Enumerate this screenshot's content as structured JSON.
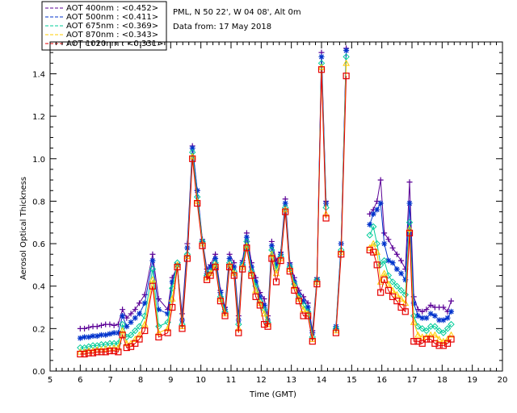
{
  "chart_data": {
    "type": "line",
    "title": "",
    "station": "PML, N 50 22', W 04 08', Alt 0m",
    "data_from": "Data from: 17 May 2018",
    "xlabel": "Time (GMT)",
    "ylabel": "Aerosol Optical Thickness",
    "xlim": [
      5,
      20
    ],
    "ylim": [
      0.0,
      1.55
    ],
    "xticks": [
      5,
      6,
      7,
      8,
      9,
      10,
      11,
      12,
      13,
      14,
      15,
      16,
      17,
      18,
      19,
      20
    ],
    "yticks": [
      0.0,
      0.2,
      0.4,
      0.6,
      0.8,
      1.0,
      1.2,
      1.4
    ],
    "ytick_labels": [
      "0.0",
      "0.2",
      "0.4",
      "0.6",
      "0.8",
      "1.0",
      "1.2",
      "1.4"
    ],
    "legend_position": "top-left, outside plot",
    "x": [
      6.0,
      6.14,
      6.28,
      6.42,
      6.56,
      6.7,
      6.84,
      6.98,
      7.12,
      7.26,
      7.4,
      7.54,
      7.68,
      7.82,
      7.96,
      8.14,
      8.4,
      8.6,
      8.9,
      9.05,
      9.22,
      9.38,
      9.55,
      9.72,
      9.88,
      10.05,
      10.2,
      10.32,
      10.48,
      10.65,
      10.8,
      10.95,
      11.1,
      11.25,
      11.38,
      11.52,
      11.68,
      11.82,
      11.96,
      12.1,
      12.22,
      12.35,
      12.5,
      12.65,
      12.8,
      12.95,
      13.1,
      13.25,
      13.4,
      13.55,
      13.7,
      13.85,
      14.0,
      14.15,
      14.3,
      14.48,
      14.65,
      14.82,
      14.98,
      15.6,
      15.72,
      15.84,
      15.96,
      16.08,
      16.22,
      16.36,
      16.5,
      16.64,
      16.78,
      16.92,
      17.06,
      17.2,
      17.34,
      17.48,
      17.62,
      17.76,
      17.9,
      18.04,
      18.18,
      18.3
    ],
    "series": [
      {
        "name": "AOT  400nm",
        "mean": "<0.452>",
        "color": "#5a0096",
        "marker": "plus",
        "values": [
          0.2,
          0.2,
          0.205,
          0.21,
          0.21,
          0.215,
          0.22,
          0.22,
          0.215,
          0.22,
          0.29,
          0.25,
          0.27,
          0.29,
          0.32,
          0.36,
          0.55,
          0.34,
          0.29,
          0.44,
          0.49,
          0.27,
          0.6,
          1.06,
          0.85,
          0.62,
          0.48,
          0.5,
          0.55,
          0.38,
          0.3,
          0.55,
          0.51,
          0.26,
          0.52,
          0.65,
          0.51,
          0.44,
          0.37,
          0.34,
          0.26,
          0.61,
          0.52,
          0.56,
          0.81,
          0.51,
          0.44,
          0.38,
          0.35,
          0.32,
          0.19,
          0.44,
          1.5,
          0.8,
          null,
          0.2,
          0.6,
          1.52,
          null,
          0.74,
          0.76,
          0.8,
          0.9,
          0.65,
          0.62,
          0.58,
          0.55,
          0.52,
          0.48,
          0.89,
          0.35,
          0.29,
          0.28,
          0.29,
          0.31,
          0.3,
          0.3,
          0.3,
          0.28,
          0.33
        ]
      },
      {
        "name": "AOT  500nm",
        "mean": "<0.411>",
        "color": "#0033cc",
        "marker": "star",
        "values": [
          0.155,
          0.16,
          0.16,
          0.165,
          0.165,
          0.17,
          0.17,
          0.175,
          0.18,
          0.18,
          0.26,
          0.21,
          0.23,
          0.25,
          0.27,
          0.32,
          0.52,
          0.29,
          0.27,
          0.42,
          0.5,
          0.24,
          0.58,
          1.05,
          0.85,
          0.61,
          0.46,
          0.49,
          0.53,
          0.37,
          0.29,
          0.53,
          0.49,
          0.24,
          0.51,
          0.63,
          0.49,
          0.42,
          0.35,
          0.31,
          0.24,
          0.59,
          0.5,
          0.55,
          0.79,
          0.5,
          0.42,
          0.36,
          0.33,
          0.3,
          0.18,
          0.43,
          1.48,
          0.79,
          null,
          0.21,
          0.6,
          1.51,
          null,
          0.69,
          0.74,
          0.76,
          0.79,
          0.6,
          0.52,
          0.51,
          0.48,
          0.46,
          0.43,
          0.79,
          0.32,
          0.26,
          0.25,
          0.25,
          0.27,
          0.26,
          0.24,
          0.24,
          0.25,
          0.28
        ]
      },
      {
        "name": "AOT  675nm",
        "mean": "<0.369>",
        "color": "#00cc99",
        "marker": "diamond",
        "values": [
          0.11,
          0.11,
          0.115,
          0.12,
          0.12,
          0.125,
          0.125,
          0.13,
          0.13,
          0.13,
          0.22,
          0.16,
          0.17,
          0.19,
          0.21,
          0.26,
          0.48,
          0.21,
          0.23,
          0.39,
          0.51,
          0.22,
          0.55,
          1.03,
          0.82,
          0.61,
          0.45,
          0.47,
          0.51,
          0.35,
          0.28,
          0.51,
          0.47,
          0.22,
          0.5,
          0.61,
          0.47,
          0.4,
          0.33,
          0.29,
          0.23,
          0.57,
          0.48,
          0.54,
          0.77,
          0.49,
          0.41,
          0.35,
          0.31,
          0.28,
          0.16,
          0.43,
          1.45,
          0.77,
          null,
          0.2,
          0.57,
          1.48,
          null,
          0.64,
          0.68,
          0.6,
          0.5,
          0.52,
          0.45,
          0.42,
          0.4,
          0.38,
          0.36,
          0.7,
          0.26,
          0.21,
          0.2,
          0.19,
          0.21,
          0.21,
          0.19,
          0.18,
          0.2,
          0.22
        ]
      },
      {
        "name": "AOT  870nm",
        "mean": "<0.343>",
        "color": "#ffcc00",
        "marker": "triangle",
        "values": [
          0.09,
          0.09,
          0.095,
          0.095,
          0.1,
          0.1,
          0.105,
          0.105,
          0.11,
          0.11,
          0.19,
          0.13,
          0.13,
          0.15,
          0.17,
          0.22,
          0.43,
          0.18,
          0.2,
          0.34,
          0.5,
          0.21,
          0.54,
          1.01,
          0.8,
          0.6,
          0.44,
          0.46,
          0.5,
          0.34,
          0.27,
          0.5,
          0.46,
          0.2,
          0.49,
          0.59,
          0.46,
          0.38,
          0.32,
          0.27,
          0.22,
          0.55,
          0.46,
          0.53,
          0.76,
          0.48,
          0.4,
          0.34,
          0.29,
          0.27,
          0.15,
          0.42,
          1.43,
          0.74,
          null,
          0.19,
          0.56,
          1.45,
          null,
          0.58,
          0.6,
          0.56,
          0.42,
          0.46,
          0.41,
          0.38,
          0.36,
          0.34,
          0.32,
          0.67,
          0.23,
          0.17,
          0.16,
          0.16,
          0.17,
          0.17,
          0.15,
          0.14,
          0.15,
          0.17
        ]
      },
      {
        "name": "AOT 1020nm",
        "mean": "<0.331>",
        "color": "#e60000",
        "marker": "square",
        "values": [
          0.08,
          0.08,
          0.085,
          0.085,
          0.09,
          0.09,
          0.09,
          0.095,
          0.095,
          0.09,
          0.17,
          0.11,
          0.115,
          0.13,
          0.15,
          0.19,
          0.4,
          0.16,
          0.18,
          0.3,
          0.49,
          0.2,
          0.53,
          1.0,
          0.79,
          0.59,
          0.43,
          0.45,
          0.49,
          0.33,
          0.26,
          0.49,
          0.45,
          0.18,
          0.48,
          0.58,
          0.45,
          0.35,
          0.31,
          0.22,
          0.21,
          0.53,
          0.42,
          0.52,
          0.75,
          0.47,
          0.38,
          0.33,
          0.26,
          0.26,
          0.14,
          0.41,
          1.42,
          0.72,
          null,
          0.18,
          0.55,
          1.39,
          null,
          0.57,
          0.56,
          0.5,
          0.37,
          0.43,
          0.38,
          0.35,
          0.33,
          0.3,
          0.28,
          0.65,
          0.14,
          0.14,
          0.13,
          0.15,
          0.15,
          0.13,
          0.12,
          0.12,
          0.13,
          0.15
        ]
      }
    ]
  }
}
